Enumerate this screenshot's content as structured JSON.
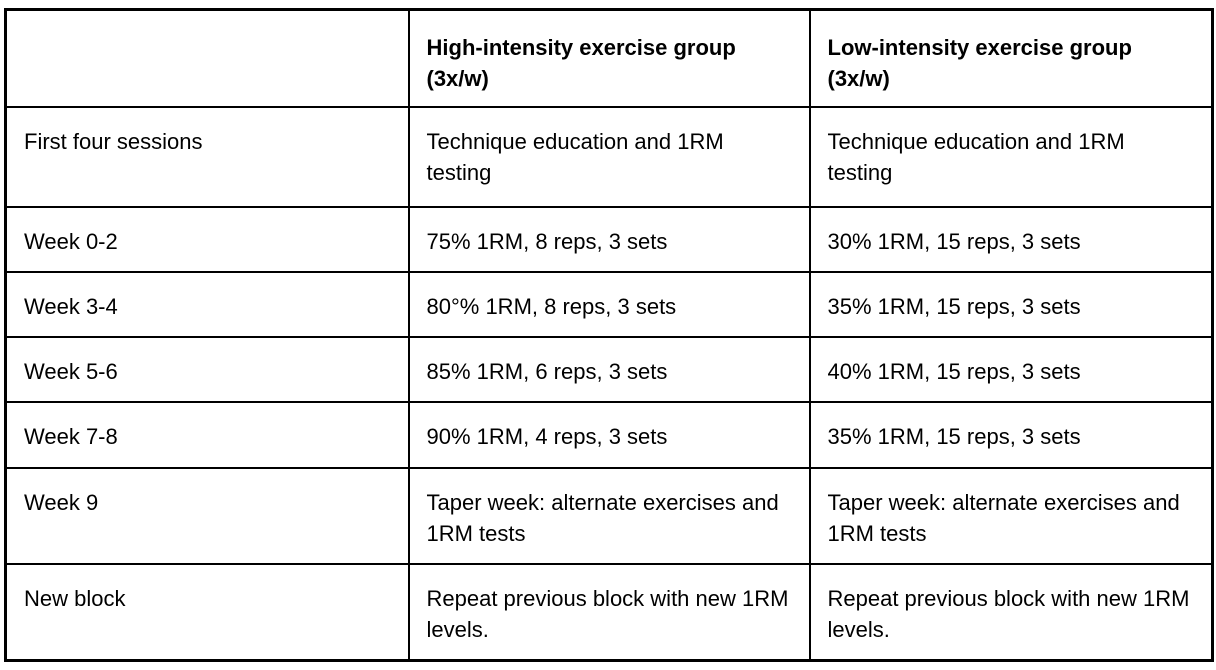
{
  "colors": {
    "background": "#ffffff",
    "border": "#000000",
    "text": "#000000"
  },
  "table": {
    "columns": [
      {
        "header": ""
      },
      {
        "header": "High-intensity exercise group (3x/w)"
      },
      {
        "header": "Low-intensity exercise group (3x/w)"
      }
    ],
    "rows": [
      {
        "label": "First four sessions",
        "high": "Technique education and 1RM testing",
        "low": "Technique education and 1RM testing"
      },
      {
        "label": "Week 0-2",
        "high": "75% 1RM, 8 reps, 3 sets",
        "low": "30% 1RM, 15 reps, 3 sets"
      },
      {
        "label": "Week 3-4",
        "high": "80°% 1RM, 8 reps, 3 sets",
        "low": "35% 1RM, 15 reps, 3 sets"
      },
      {
        "label": "Week 5-6",
        "high": "85% 1RM, 6 reps, 3 sets",
        "low": "40% 1RM, 15 reps, 3 sets"
      },
      {
        "label": "Week 7-8",
        "high": "90% 1RM, 4 reps, 3 sets",
        "low": "35% 1RM, 15 reps, 3 sets"
      },
      {
        "label": "Week 9",
        "high": "Taper week: alternate exercises and 1RM tests",
        "low": "Taper week: alternate exercises and 1RM tests"
      },
      {
        "label": "New block",
        "high": "Repeat previous block with new 1RM levels.",
        "low": "Repeat previous block with new 1RM levels."
      }
    ]
  }
}
